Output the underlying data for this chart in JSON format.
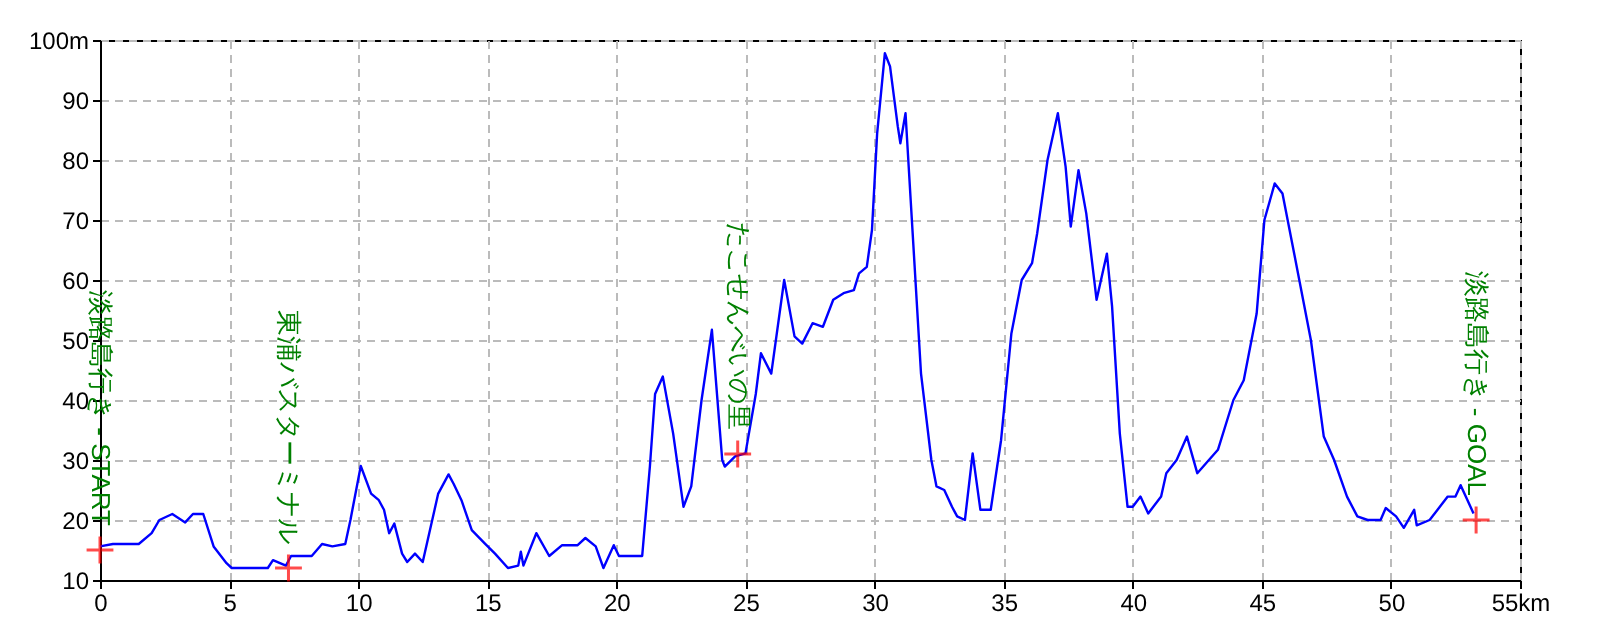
{
  "chart_data": {
    "type": "line",
    "xlim": [
      0,
      55
    ],
    "ylim": [
      10,
      100
    ],
    "xticks": [
      0,
      5,
      10,
      15,
      20,
      25,
      30,
      35,
      40,
      45,
      50,
      {
        "value": 55,
        "label": "55km"
      }
    ],
    "yticks": [
      10,
      20,
      30,
      40,
      50,
      60,
      70,
      80,
      90,
      {
        "value": 100,
        "label": "100m"
      }
    ],
    "grid": true,
    "line_style": "solid",
    "marker": "none",
    "series": [
      {
        "color": "#0000ff",
        "x": [
          0,
          0.5,
          1.3,
          1.5,
          2.0,
          2.3,
          2.8,
          3.3,
          3.6,
          4.0,
          4.4,
          4.9,
          5.1,
          5.9,
          6.5,
          6.7,
          7.2,
          7.4,
          8.2,
          8.6,
          9.0,
          9.5,
          9.7,
          10.1,
          10.5,
          10.8,
          11.0,
          11.2,
          11.4,
          11.7,
          11.9,
          12.2,
          12.5,
          13.1,
          13.5,
          13.7,
          14.0,
          14.4,
          14.9,
          15.3,
          15.8,
          16.2,
          16.3,
          16.4,
          16.9,
          17.4,
          17.9,
          18.5,
          18.8,
          19.2,
          19.5,
          19.9,
          20.1,
          21.0,
          21.3,
          21.5,
          21.8,
          22.2,
          22.6,
          22.9,
          23.3,
          23.7,
          24.1,
          24.2,
          24.6,
          25.0,
          25.4,
          25.6,
          26.0,
          26.5,
          26.9,
          27.2,
          27.6,
          28.0,
          28.4,
          28.8,
          29.2,
          29.4,
          29.7,
          29.9,
          30.1,
          30.4,
          30.6,
          30.9,
          31.0,
          31.2,
          31.4,
          31.8,
          32.2,
          32.4,
          32.7,
          33.0,
          33.2,
          33.5,
          33.8,
          34.1,
          34.5,
          34.9,
          35.3,
          35.7,
          36.1,
          36.3,
          36.7,
          37.1,
          37.4,
          37.6,
          37.9,
          38.2,
          38.6,
          39.0,
          39.2,
          39.5,
          39.8,
          40.0,
          40.3,
          40.6,
          41.1,
          41.3,
          41.7,
          42.1,
          42.5,
          43.3,
          43.9,
          44.3,
          44.8,
          45.1,
          45.5,
          45.8,
          46.2,
          46.9,
          47.4,
          47.8,
          48.3,
          48.7,
          49.1,
          49.6,
          49.8,
          50.2,
          50.5,
          50.9,
          51.0,
          51.5,
          52.2,
          52.5,
          52.7,
          52.9,
          53.2
        ],
        "values": [
          15.6,
          16,
          16,
          16,
          17.8,
          20,
          21,
          19.6,
          21,
          21,
          15.6,
          12.8,
          12,
          12,
          12,
          13.3,
          12.4,
          14,
          14,
          16,
          15.6,
          16,
          20,
          29,
          24.4,
          23.3,
          21.7,
          17.8,
          19.4,
          14.4,
          13,
          14.4,
          13,
          24.4,
          27.6,
          26,
          23.3,
          18.3,
          16.1,
          14.4,
          12,
          12.4,
          14.7,
          12.4,
          17.8,
          14,
          15.8,
          15.8,
          17,
          15.6,
          12,
          15.8,
          14,
          14,
          29,
          41,
          43.9,
          34.4,
          22.2,
          25.6,
          40,
          51.7,
          30,
          28.9,
          30.6,
          31.1,
          41,
          47.8,
          44.4,
          60,
          50.6,
          49.4,
          52.8,
          52.2,
          56.7,
          57.8,
          58.3,
          61.1,
          62.2,
          68.3,
          84.4,
          97.8,
          95.6,
          85.6,
          82.8,
          87.8,
          73.3,
          44.4,
          30,
          25.6,
          25,
          22.2,
          20.6,
          20,
          31.1,
          21.7,
          21.7,
          33.3,
          51.1,
          60,
          62.8,
          67.8,
          80,
          87.8,
          78.9,
          68.9,
          78.3,
          71.1,
          56.7,
          64.4,
          55.6,
          34.4,
          22.2,
          22.2,
          23.9,
          21.1,
          23.9,
          27.8,
          30,
          33.9,
          27.8,
          31.7,
          40,
          43.3,
          54.4,
          70,
          76.1,
          74.4,
          65.6,
          50,
          33.9,
          30,
          23.9,
          20.6,
          20,
          20,
          22,
          20.6,
          18.7,
          21.7,
          19.1,
          20,
          23.9,
          23.9,
          25.8,
          23.9,
          21.1
        ]
      }
    ],
    "annotations": [
      {
        "text": "淡路島行き - START",
        "x": 0,
        "y": 15
      },
      {
        "text": "東浦バスターミナル",
        "x": 7.3,
        "y": 12
      },
      {
        "text": "たこせんべいの里",
        "x": 24.7,
        "y": 31
      },
      {
        "text": "淡路島行き - GOAL",
        "x": 53.3,
        "y": 20
      }
    ]
  }
}
